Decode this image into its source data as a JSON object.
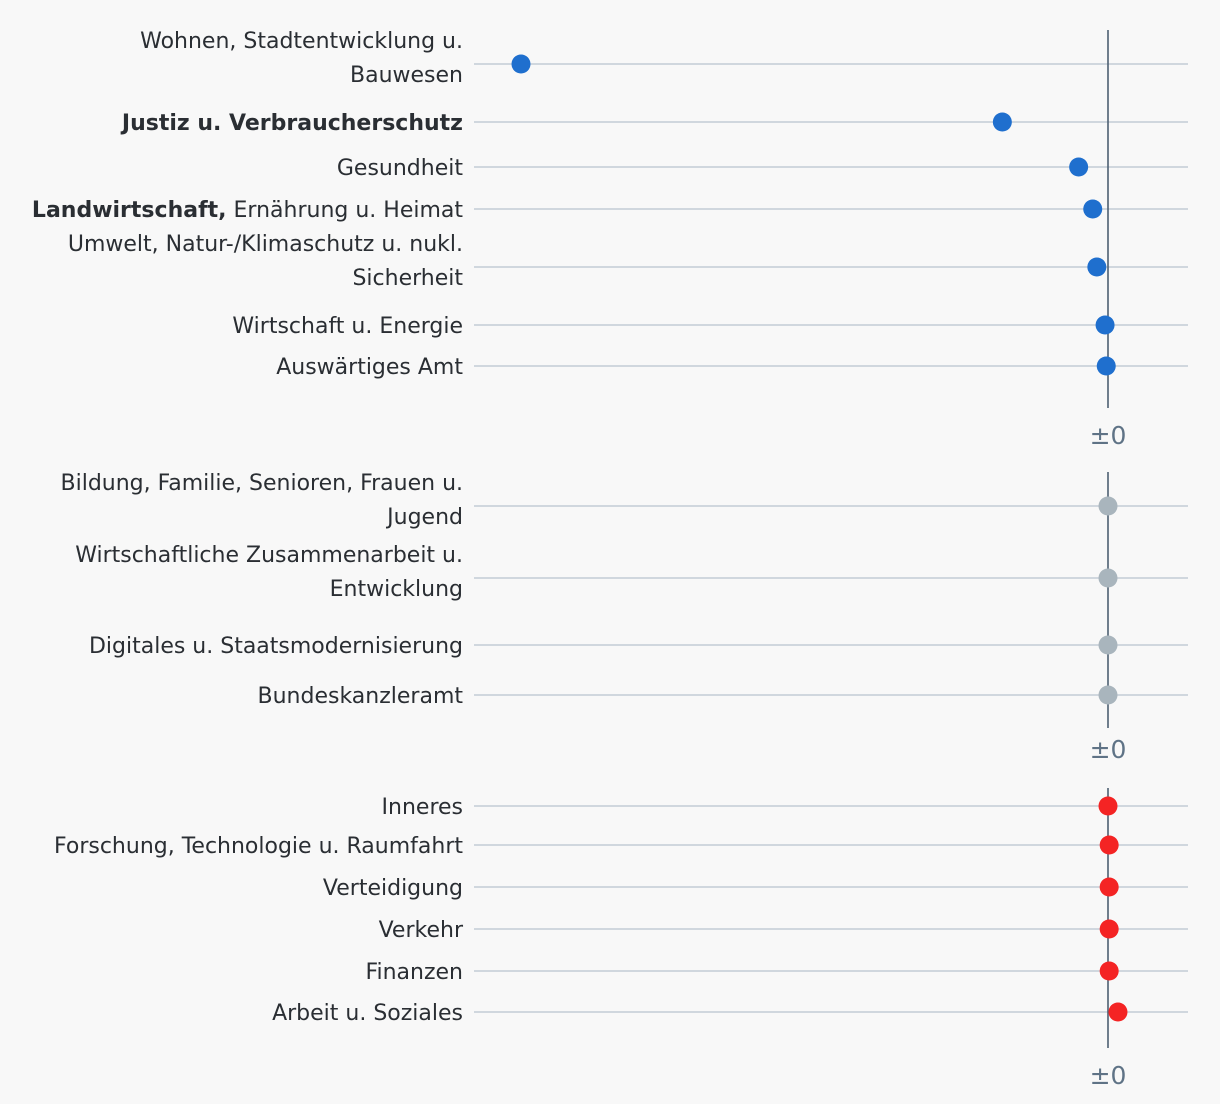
{
  "chart_data": [
    {
      "type": "dot",
      "group": "negative",
      "color": "#1f6fce",
      "zero_label": "±0",
      "x_range": [
        -1.0,
        0.14
      ],
      "rows": [
        {
          "label_parts": [
            {
              "text": "Wohnen, Stadtentwicklung u.",
              "bold": false
            },
            {
              "text": "Bauwesen",
              "bold": false,
              "newline": true
            }
          ],
          "value": -1.0
        },
        {
          "label_parts": [
            {
              "text": "Justiz u. Verbraucherschutz",
              "bold": true
            }
          ],
          "value": -0.18
        },
        {
          "label_parts": [
            {
              "text": "Gesundheit",
              "bold": false
            }
          ],
          "value": -0.05
        },
        {
          "label_parts": [
            {
              "text": "Landwirtschaft,",
              "bold": true
            },
            {
              "text": " Ernährung u. Heimat",
              "bold": false
            }
          ],
          "value": -0.026
        },
        {
          "label_parts": [
            {
              "text": "Umwelt, Natur-/Klimaschutz u. nukl.",
              "bold": false
            },
            {
              "text": "Sicherheit",
              "bold": false,
              "newline": true
            }
          ],
          "value": -0.019
        },
        {
          "label_parts": [
            {
              "text": "Wirtschaft u. Energie",
              "bold": false
            }
          ],
          "value": -0.005
        },
        {
          "label_parts": [
            {
              "text": "Auswärtiges Amt",
              "bold": false
            }
          ],
          "value": -0.003
        }
      ]
    },
    {
      "type": "dot",
      "group": "neutral",
      "color": "#a9b5bd",
      "zero_label": "±0",
      "x_range": [
        -1.0,
        0.14
      ],
      "rows": [
        {
          "label_parts": [
            {
              "text": "Bildung, Familie, Senioren, Frauen u.",
              "bold": false
            },
            {
              "text": "Jugend",
              "bold": false,
              "newline": true
            }
          ],
          "value": 0
        },
        {
          "label_parts": [
            {
              "text": "Wirtschaftliche Zusammenarbeit u.",
              "bold": false
            },
            {
              "text": "Entwicklung",
              "bold": false,
              "newline": true
            }
          ],
          "value": 0
        },
        {
          "label_parts": [
            {
              "text": "Digitales u. Staatsmodernisierung",
              "bold": false
            }
          ],
          "value": 0
        },
        {
          "label_parts": [
            {
              "text": "Bundeskanzleramt",
              "bold": false
            }
          ],
          "value": 0
        }
      ]
    },
    {
      "type": "dot",
      "group": "positive",
      "color": "#f42424",
      "zero_label": "±0",
      "x_range": [
        -1.0,
        0.14
      ],
      "rows": [
        {
          "label_parts": [
            {
              "text": "Inneres",
              "bold": false
            }
          ],
          "value": 0
        },
        {
          "label_parts": [
            {
              "text": "Forschung, Technologie u. Raumfahrt",
              "bold": false
            }
          ],
          "value": 0.002
        },
        {
          "label_parts": [
            {
              "text": "Verteidigung",
              "bold": false
            }
          ],
          "value": 0.002
        },
        {
          "label_parts": [
            {
              "text": "Verkehr",
              "bold": false
            }
          ],
          "value": 0.002
        },
        {
          "label_parts": [
            {
              "text": "Finanzen",
              "bold": false
            }
          ],
          "value": 0.002
        },
        {
          "label_parts": [
            {
              "text": "Arbeit u. Soziales",
              "bold": false
            }
          ],
          "value": 0.017
        }
      ]
    }
  ]
}
